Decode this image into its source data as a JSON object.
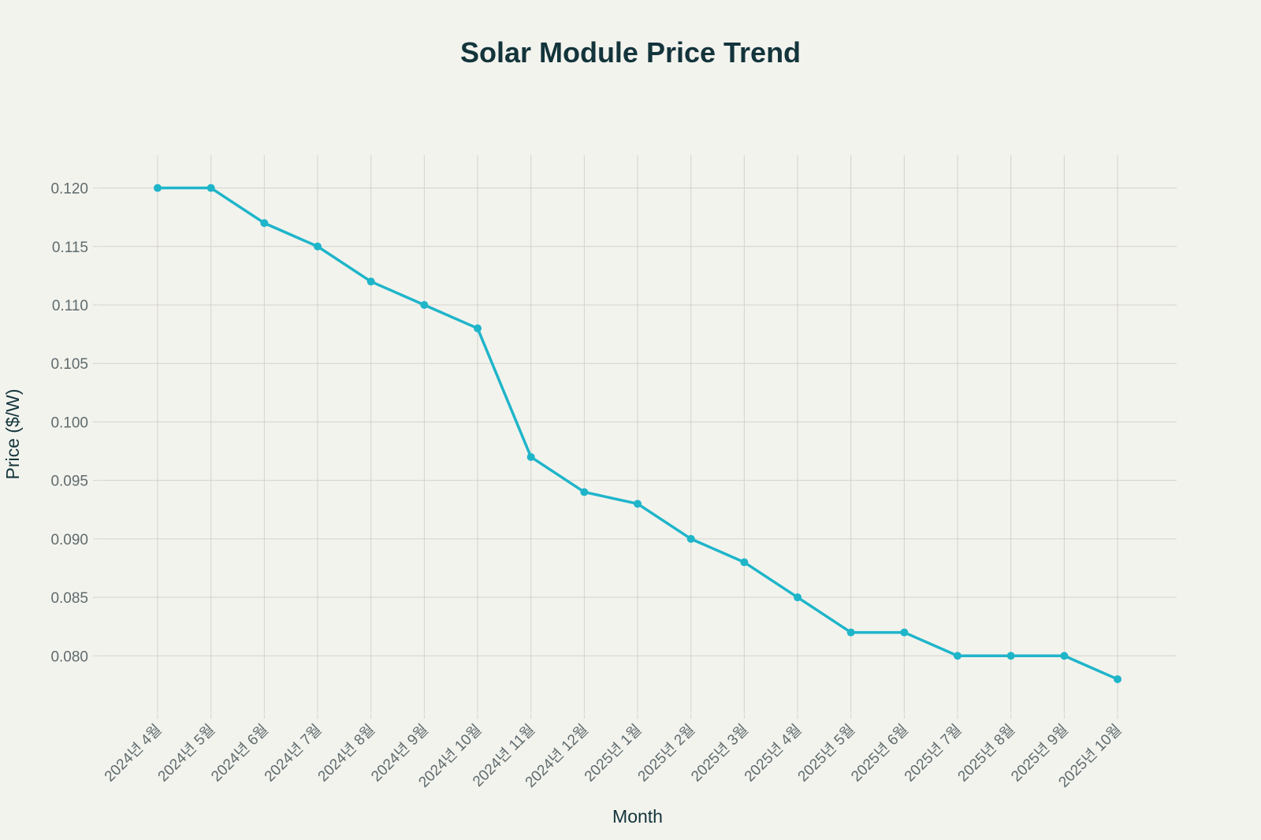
{
  "chart_data": {
    "type": "line",
    "title": "Solar Module Price Trend",
    "xlabel": "Month",
    "ylabel": "Price ($/W)",
    "categories": [
      "2024년 4월",
      "2024년 5월",
      "2024년 6월",
      "2024년 7월",
      "2024년 8월",
      "2024년 9월",
      "2024년 10월",
      "2024년 11월",
      "2024년 12월",
      "2025년 1월",
      "2025년 2월",
      "2025년 3월",
      "2025년 4월",
      "2025년 5월",
      "2025년 6월",
      "2025년 7월",
      "2025년 8월",
      "2025년 9월",
      "2025년 10월"
    ],
    "values": [
      0.12,
      0.12,
      0.117,
      0.115,
      0.112,
      0.11,
      0.108,
      0.097,
      0.094,
      0.093,
      0.09,
      0.088,
      0.085,
      0.082,
      0.082,
      0.08,
      0.08,
      0.08,
      0.078
    ],
    "yticks": [
      "0.080",
      "0.085",
      "0.090",
      "0.095",
      "0.100",
      "0.105",
      "0.110",
      "0.115",
      "0.120"
    ],
    "ylim": [
      0.0751,
      0.1228
    ],
    "grid": true,
    "markers": true,
    "colors": {
      "line": "#1fb5c9",
      "background": "#f3f3ee",
      "text": "#13343b",
      "grid": "#d3d2cc"
    }
  }
}
